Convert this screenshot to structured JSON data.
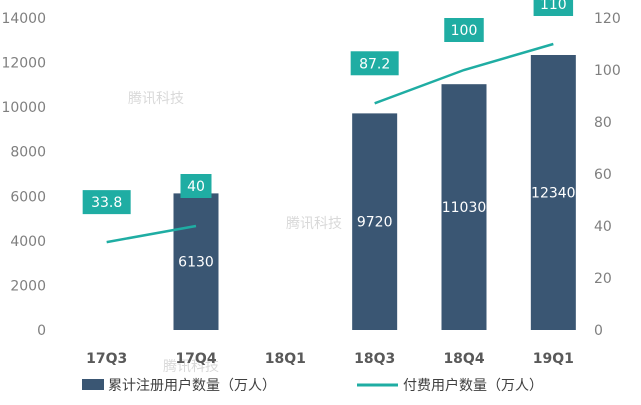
{
  "chart_data": {
    "type": "bar",
    "categories": [
      "17Q3",
      "17Q4",
      "18Q1",
      "18Q3",
      "18Q4",
      "19Q1"
    ],
    "series": [
      {
        "name": "累计注册用户数量（万人）",
        "type": "bar",
        "axis": "left",
        "values": [
          null,
          6130,
          null,
          9720,
          11030,
          12340
        ],
        "labels": [
          "",
          "6130",
          "",
          "9720",
          "11030",
          "12340"
        ]
      },
      {
        "name": "付费用户数量（万人）",
        "type": "line",
        "axis": "right",
        "values": [
          33.8,
          40,
          null,
          87.2,
          100,
          110
        ],
        "labels": [
          "33.8",
          "40",
          "",
          "87.2",
          "100",
          "110"
        ]
      }
    ],
    "y_left": {
      "ylim": [
        0,
        14000
      ],
      "ticks": [
        "0",
        "2000",
        "4000",
        "6000",
        "8000",
        "10000",
        "12000",
        "14000"
      ]
    },
    "y_right": {
      "ylim": [
        0,
        120
      ],
      "ticks": [
        "0",
        "20",
        "40",
        "60",
        "80",
        "100",
        "120"
      ]
    },
    "grid": false,
    "legend_position": "bottom"
  },
  "watermarks": [
    "腾讯科技",
    "腾讯科技",
    "腾讯科技"
  ],
  "colors": {
    "bar": "#3a5673",
    "line": "#1fada3",
    "label_box": "#1fada3"
  }
}
